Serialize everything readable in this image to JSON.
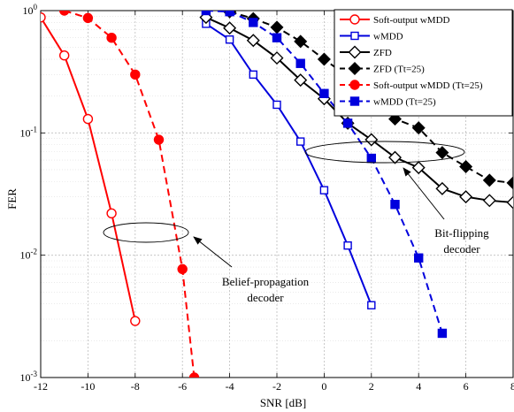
{
  "chart_data": {
    "type": "line",
    "title": "",
    "xlabel": "SNR [dB]",
    "ylabel": "FER",
    "yscale": "log",
    "xlim": [
      -12,
      8
    ],
    "ylim": [
      0.001,
      1
    ],
    "grid": true,
    "legend_position": "top-right",
    "x_tick_labels": [
      "-12",
      "-10",
      "-8",
      "-6",
      "-4",
      "-2",
      "0",
      "2",
      "4",
      "6",
      "8"
    ],
    "series": [
      {
        "name": "Soft-output wMDD",
        "color": "#ff0000",
        "dash": "solid",
        "marker": "circle-open",
        "x": [
          -12,
          -11,
          -10,
          -9,
          -8
        ],
        "y": [
          0.88,
          0.43,
          0.13,
          0.022,
          0.0029
        ]
      },
      {
        "name": "wMDD",
        "color": "#0000dd",
        "dash": "solid",
        "marker": "square-open",
        "x": [
          -5,
          -4,
          -3,
          -2,
          -1,
          0,
          1,
          2
        ],
        "y": [
          0.78,
          0.58,
          0.3,
          0.17,
          0.085,
          0.034,
          0.012,
          0.0039
        ]
      },
      {
        "name": "ZFD",
        "color": "#000000",
        "dash": "solid",
        "marker": "diamond-open",
        "x": [
          -5,
          -4,
          -3,
          -2,
          -1,
          0,
          1,
          2,
          3,
          4,
          5,
          6,
          7,
          8
        ],
        "y": [
          0.88,
          0.72,
          0.57,
          0.41,
          0.27,
          0.19,
          0.12,
          0.088,
          0.063,
          0.052,
          0.035,
          0.03,
          0.028,
          0.027
        ]
      },
      {
        "name": "ZFD (Tt=25)",
        "color": "#000000",
        "dash": "dashed",
        "marker": "diamond-filled",
        "x": [
          -4,
          -3,
          -2,
          -1,
          0,
          1,
          2,
          3,
          4,
          5,
          6,
          7,
          8
        ],
        "y": [
          0.98,
          0.86,
          0.73,
          0.56,
          0.4,
          0.29,
          0.2,
          0.13,
          0.11,
          0.069,
          0.053,
          0.041,
          0.039
        ]
      },
      {
        "name": "Soft-output wMDD (Tt=25)",
        "color": "#ff0000",
        "dash": "dashed",
        "marker": "circle-filled",
        "x": [
          -11,
          -10,
          -9,
          -8,
          -7,
          -6,
          -5.5
        ],
        "y": [
          1.0,
          0.87,
          0.6,
          0.3,
          0.088,
          0.0077,
          0.001
        ]
      },
      {
        "name": "wMDD (Tt=25)",
        "color": "#0000dd",
        "dash": "dashed",
        "marker": "square-filled",
        "x": [
          -5,
          -4,
          -3,
          -2,
          -1,
          0,
          1,
          2,
          3,
          4,
          5
        ],
        "y": [
          1.0,
          0.98,
          0.8,
          0.6,
          0.37,
          0.21,
          0.12,
          0.062,
          0.026,
          0.0095,
          0.0023
        ]
      }
    ],
    "annotations": [
      {
        "lines": [
          "Belief-propagation",
          "decoder"
        ]
      },
      {
        "lines": [
          "Bit-flipping",
          "decoder"
        ]
      }
    ]
  }
}
